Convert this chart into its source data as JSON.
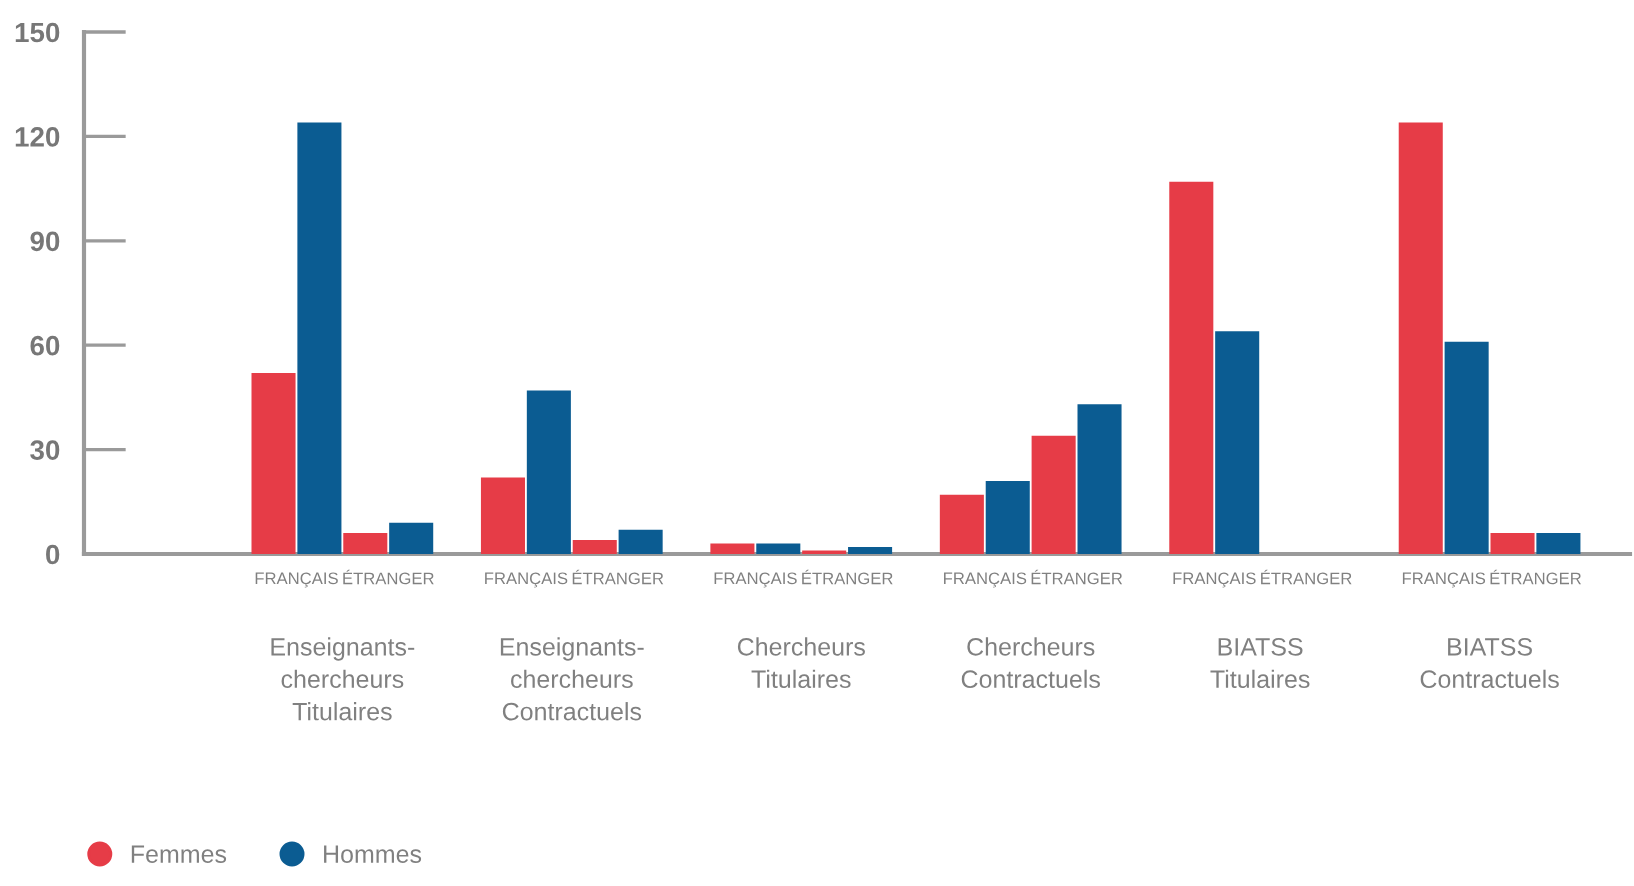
{
  "chart_data": {
    "type": "bar",
    "categories": [
      "FRANÇAIS",
      "ÉTRANGER",
      "FRANÇAIS",
      "ÉTRANGER",
      "FRANÇAIS",
      "ÉTRANGER",
      "FRANÇAIS",
      "ÉTRANGER",
      "FRANÇAIS",
      "ÉTRANGER",
      "FRANÇAIS",
      "ÉTRANGER"
    ],
    "series": [
      {
        "name": "Femmes",
        "color": "#e63c47",
        "values": [
          52,
          6,
          22,
          4,
          3,
          1,
          17,
          34,
          107,
          null,
          124,
          6
        ]
      },
      {
        "name": "Hommes",
        "color": "#0b5c92",
        "values": [
          124,
          9,
          47,
          7,
          3,
          2,
          21,
          43,
          64,
          null,
          61,
          6
        ]
      }
    ],
    "ylim": [
      0,
      150
    ],
    "yticks": [
      0,
      30,
      60,
      90,
      120,
      150
    ],
    "legend": "bottom left",
    "annotations": [
      "Enseignants-\nchercheurs\nTitulaires",
      "Enseignants-\nchercheurs\nContractuels",
      "Chercheurs\nTitulaires",
      "Chercheurs\nContractuels",
      "BIATSS\nTitulaires",
      "BIATSS\nContractuels"
    ]
  }
}
